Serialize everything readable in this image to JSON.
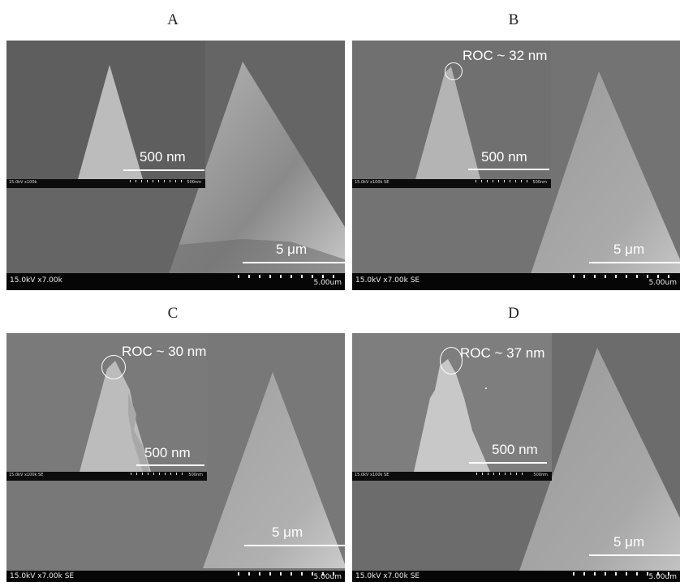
{
  "panels": [
    {
      "letter": "A",
      "inset_scale": "500 nm",
      "inset_info": "15.0kV x100k",
      "inset_len": "500nm",
      "main_scale": "5 μm",
      "bar_info": "15.0kV x7.00k",
      "bar_len": "5.00um",
      "roc": ""
    },
    {
      "letter": "B",
      "inset_scale": "500 nm",
      "inset_info": "15.0kV x100k SE",
      "inset_len": "500nm",
      "main_scale": "5 μm",
      "bar_info": "15.0kV x7.00k SE",
      "bar_len": "5.00um",
      "roc": "ROC ~ 32 nm"
    },
    {
      "letter": "C",
      "inset_scale": "500 nm",
      "inset_info": "15.0kV x100k SE",
      "inset_len": "500nm",
      "main_scale": "5 μm",
      "bar_info": "15.0kV x7.00k SE",
      "bar_len": "5.00um",
      "roc": "ROC ~ 30 nm"
    },
    {
      "letter": "D",
      "inset_scale": "500 nm",
      "inset_info": "15.0kV x100k SE",
      "inset_len": "500nm",
      "main_scale": "5 μm",
      "bar_info": "15.0kV x7.00k SE",
      "bar_len": "5.00um",
      "roc": "ROC ~ 37 nm"
    }
  ],
  "colors": {
    "background_sem": "#6a6a6a",
    "tip_light": "#c8c8c8",
    "scale_text": "#ffffff",
    "data_bar": "#060606"
  }
}
